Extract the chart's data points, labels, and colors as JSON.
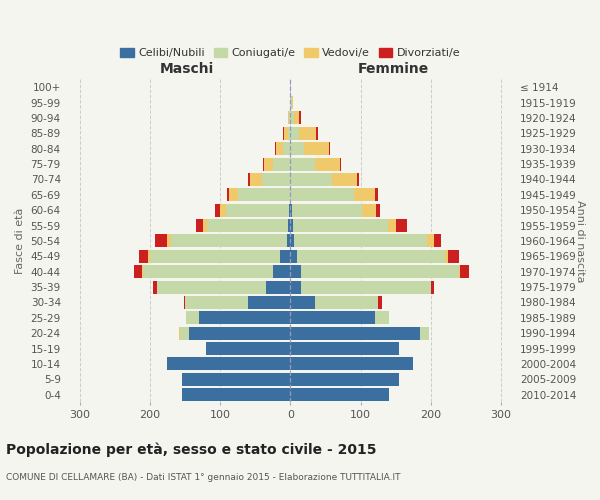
{
  "age_groups": [
    "0-4",
    "5-9",
    "10-14",
    "15-19",
    "20-24",
    "25-29",
    "30-34",
    "35-39",
    "40-44",
    "45-49",
    "50-54",
    "55-59",
    "60-64",
    "65-69",
    "70-74",
    "75-79",
    "80-84",
    "85-89",
    "90-94",
    "95-99",
    "100+"
  ],
  "birth_years": [
    "2010-2014",
    "2005-2009",
    "2000-2004",
    "1995-1999",
    "1990-1994",
    "1985-1989",
    "1980-1984",
    "1975-1979",
    "1970-1974",
    "1965-1969",
    "1960-1964",
    "1955-1959",
    "1950-1954",
    "1945-1949",
    "1940-1944",
    "1935-1939",
    "1930-1934",
    "1925-1929",
    "1920-1924",
    "1915-1919",
    "≤ 1914"
  ],
  "males": {
    "celibi": [
      155,
      155,
      175,
      120,
      145,
      130,
      60,
      35,
      25,
      15,
      5,
      4,
      2,
      0,
      0,
      0,
      0,
      0,
      0,
      0,
      0
    ],
    "coniugati": [
      0,
      0,
      0,
      0,
      12,
      18,
      90,
      155,
      185,
      185,
      165,
      115,
      90,
      75,
      40,
      25,
      10,
      4,
      2,
      0,
      0
    ],
    "vedovi": [
      0,
      0,
      0,
      0,
      2,
      0,
      0,
      0,
      2,
      3,
      5,
      5,
      8,
      12,
      18,
      12,
      10,
      5,
      2,
      0,
      0
    ],
    "divorziati": [
      0,
      0,
      0,
      0,
      0,
      0,
      2,
      5,
      10,
      12,
      18,
      10,
      8,
      3,
      2,
      2,
      2,
      2,
      0,
      0,
      0
    ]
  },
  "females": {
    "nubili": [
      140,
      155,
      175,
      155,
      185,
      120,
      35,
      15,
      15,
      10,
      5,
      4,
      2,
      0,
      0,
      0,
      0,
      0,
      0,
      0,
      0
    ],
    "coniugate": [
      0,
      0,
      0,
      0,
      12,
      20,
      90,
      185,
      225,
      210,
      190,
      135,
      100,
      90,
      60,
      35,
      20,
      12,
      5,
      2,
      0
    ],
    "vedove": [
      0,
      0,
      0,
      0,
      0,
      0,
      0,
      0,
      2,
      5,
      10,
      12,
      20,
      30,
      35,
      35,
      35,
      25,
      8,
      2,
      0
    ],
    "divorziate": [
      0,
      0,
      0,
      0,
      0,
      0,
      5,
      5,
      12,
      15,
      10,
      15,
      5,
      5,
      3,
      2,
      2,
      2,
      2,
      0,
      0
    ]
  },
  "colors": {
    "celibi": "#3b6fa0",
    "coniugati": "#c5d9a8",
    "vedovi": "#f0c96a",
    "divorziati": "#cc2020"
  },
  "title": "Popolazione per età, sesso e stato civile - 2015",
  "subtitle": "COMUNE DI CELLAMARE (BA) - Dati ISTAT 1° gennaio 2015 - Elaborazione TUTTITALIA.IT",
  "xlabel_left": "Maschi",
  "xlabel_right": "Femmine",
  "ylabel_left": "Fasce di età",
  "ylabel_right": "Anni di nascita",
  "xlim": 320,
  "background_color": "#f5f5f0",
  "grid_color": "#cccccc"
}
